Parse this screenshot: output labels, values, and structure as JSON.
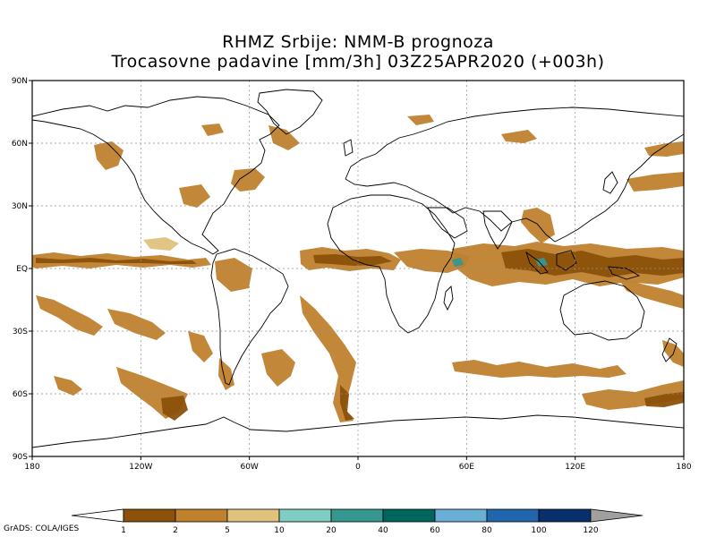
{
  "title": {
    "line1": "RHMZ Srbije: NMM-B prognoza",
    "line2": "Trocasovne padavine [mm/3h] 03Z25APR2020 (+003h)"
  },
  "map": {
    "projection": "cylindrical lat-lon",
    "lon_range": [
      -180,
      180
    ],
    "lat_range": [
      -90,
      90
    ],
    "grid": true,
    "x_ticks": [
      {
        "lon": -180,
        "label": "180"
      },
      {
        "lon": -120,
        "label": "120W"
      },
      {
        "lon": -60,
        "label": "60W"
      },
      {
        "lon": 0,
        "label": "0"
      },
      {
        "lon": 60,
        "label": "60E"
      },
      {
        "lon": 120,
        "label": "120E"
      },
      {
        "lon": 180,
        "label": "180"
      }
    ],
    "y_ticks": [
      {
        "lat": 90,
        "label": "90N"
      },
      {
        "lat": 60,
        "label": "60N"
      },
      {
        "lat": 30,
        "label": "30N"
      },
      {
        "lat": 0,
        "label": "EQ"
      },
      {
        "lat": -30,
        "label": "30S"
      },
      {
        "lat": -60,
        "label": "60S"
      },
      {
        "lat": -90,
        "label": "90S"
      }
    ]
  },
  "colorbar": {
    "under_color": "#ffffff",
    "over_color": "#a0a0a0",
    "bins": [
      {
        "color": "#8c510a"
      },
      {
        "color": "#bf812d"
      },
      {
        "color": "#dfc27d"
      },
      {
        "color": "#80cdc1"
      },
      {
        "color": "#35978f"
      },
      {
        "color": "#01665e"
      },
      {
        "color": "#6baed6"
      },
      {
        "color": "#2166ac"
      },
      {
        "color": "#08306b"
      }
    ],
    "labels": [
      "1",
      "2",
      "5",
      "10",
      "20",
      "40",
      "60",
      "80",
      "100",
      "120"
    ]
  },
  "precip_colors": {
    "light": "#bf812d",
    "moderate": "#8c510a",
    "trace": "#dfc27d",
    "heavy": "#35978f"
  },
  "credit": "GrADS: COLA/IGES"
}
